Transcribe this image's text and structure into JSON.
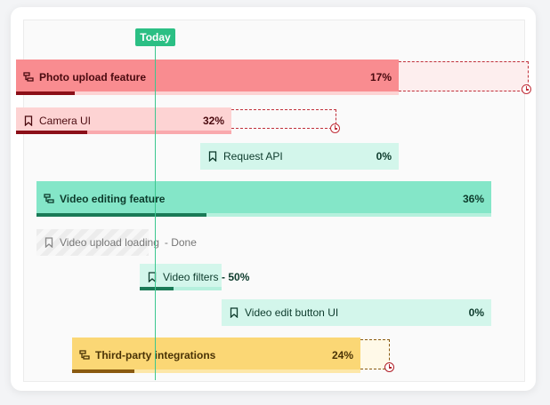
{
  "today_label": "Today",
  "tasks": [
    {
      "name": "Photo upload feature",
      "type": "epic",
      "percent": "17%",
      "progress": 0.17
    },
    {
      "name": "Camera UI",
      "type": "story",
      "percent": "32%",
      "progress": 0.32
    },
    {
      "name": "Request API",
      "type": "story",
      "percent": "0%",
      "progress": 0
    },
    {
      "name": "Video editing feature",
      "type": "epic",
      "percent": "36%",
      "progress": 0.36
    },
    {
      "name": "Video upload loading",
      "type": "story",
      "status": "- Done"
    },
    {
      "name": "Video filters",
      "type": "story",
      "percent": "50%",
      "progress": 0.5
    },
    {
      "name": "Video edit button UI",
      "type": "story",
      "percent": "0%",
      "progress": 0
    },
    {
      "name": "Third-party integrations",
      "type": "epic",
      "percent": "24%",
      "progress": 0.24
    }
  ],
  "colors": {
    "red_bar": "#f98c90",
    "red_light": "#fdd3d3",
    "red_dark": "#8b0f18",
    "green_bar": "#84e6c8",
    "green_light": "#d3f6eb",
    "green_dark": "#1a7a57",
    "yellow_bar": "#fbd775",
    "yellow_dark": "#8a5a10",
    "today": "#2bbf84"
  }
}
